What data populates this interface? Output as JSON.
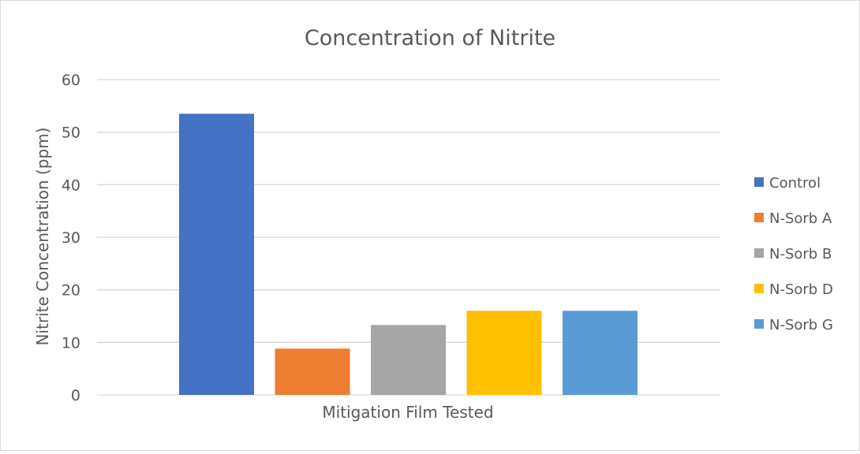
{
  "chart_data": {
    "type": "bar",
    "title": "Concentration of Nitrite",
    "xlabel": "Mitigation Film Tested",
    "ylabel": "Nitrite Concentration (ppm)",
    "ylim": [
      0,
      60
    ],
    "yticks": [
      0,
      10,
      20,
      30,
      40,
      50,
      60
    ],
    "grid": true,
    "legend_position": "right",
    "categories": [
      ""
    ],
    "series": [
      {
        "name": "Control",
        "values": [
          53.5
        ],
        "color": "#4472C4"
      },
      {
        "name": "N-Sorb A",
        "values": [
          8.8
        ],
        "color": "#ED7D31"
      },
      {
        "name": "N-Sorb B",
        "values": [
          13.3
        ],
        "color": "#A5A5A5"
      },
      {
        "name": "N-Sorb D",
        "values": [
          16.0
        ],
        "color": "#FFC000"
      },
      {
        "name": "N-Sorb G",
        "values": [
          16.0
        ],
        "color": "#5B9BD5"
      }
    ]
  }
}
